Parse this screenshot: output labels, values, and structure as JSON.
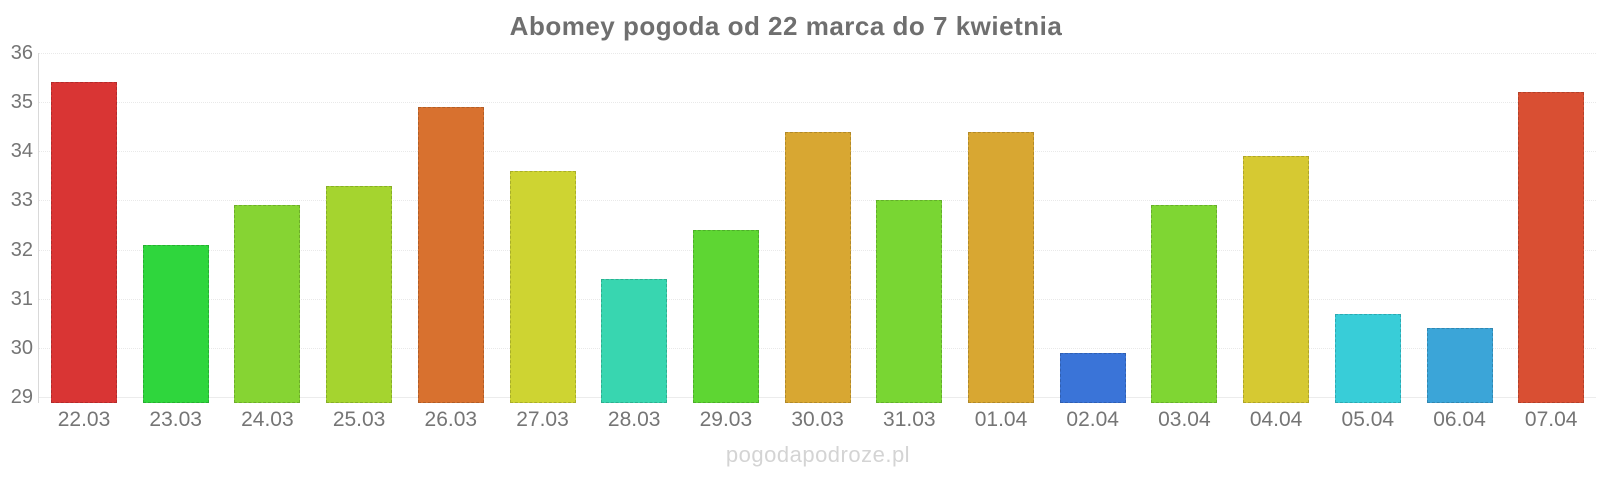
{
  "title": "Abomey pogoda od 22 marca do 7 kwietnia",
  "watermark": "pogodapodroze.pl",
  "chart_data": {
    "type": "bar",
    "title": "Abomey pogoda od 22 marca do 7 kwietnia",
    "categories": [
      "22.03",
      "23.03",
      "24.03",
      "25.03",
      "26.03",
      "27.03",
      "28.03",
      "29.03",
      "30.03",
      "31.03",
      "01.04",
      "02.04",
      "03.04",
      "04.04",
      "05.04",
      "06.04",
      "07.04"
    ],
    "values": [
      35.4,
      32.1,
      32.9,
      33.3,
      34.9,
      33.6,
      31.4,
      32.4,
      34.4,
      33.0,
      34.4,
      29.9,
      32.9,
      33.9,
      30.7,
      30.4,
      35.2
    ],
    "bar_colors": [
      "#d93534",
      "#2fd63d",
      "#86d433",
      "#a5d42f",
      "#d8712f",
      "#ced432",
      "#38d6b0",
      "#5ed633",
      "#d8a732",
      "#79d633",
      "#d8a732",
      "#3a74d8",
      "#7fd633",
      "#d6c932",
      "#38cdd8",
      "#3ba5d8",
      "#d94f33"
    ],
    "xlabel": "",
    "ylabel": "",
    "ylim": [
      29,
      36
    ],
    "yticks": [
      36,
      35,
      34,
      33,
      32,
      31,
      30,
      29
    ],
    "grid": true,
    "legend": "none",
    "colors": {
      "title_text": "#6f6f6f",
      "tick_text": "#757575",
      "gridline": "#e9e9e9",
      "axis_line": "#d9d9d9",
      "watermark_text": "#d4d4d4",
      "background": "#ffffff"
    }
  }
}
